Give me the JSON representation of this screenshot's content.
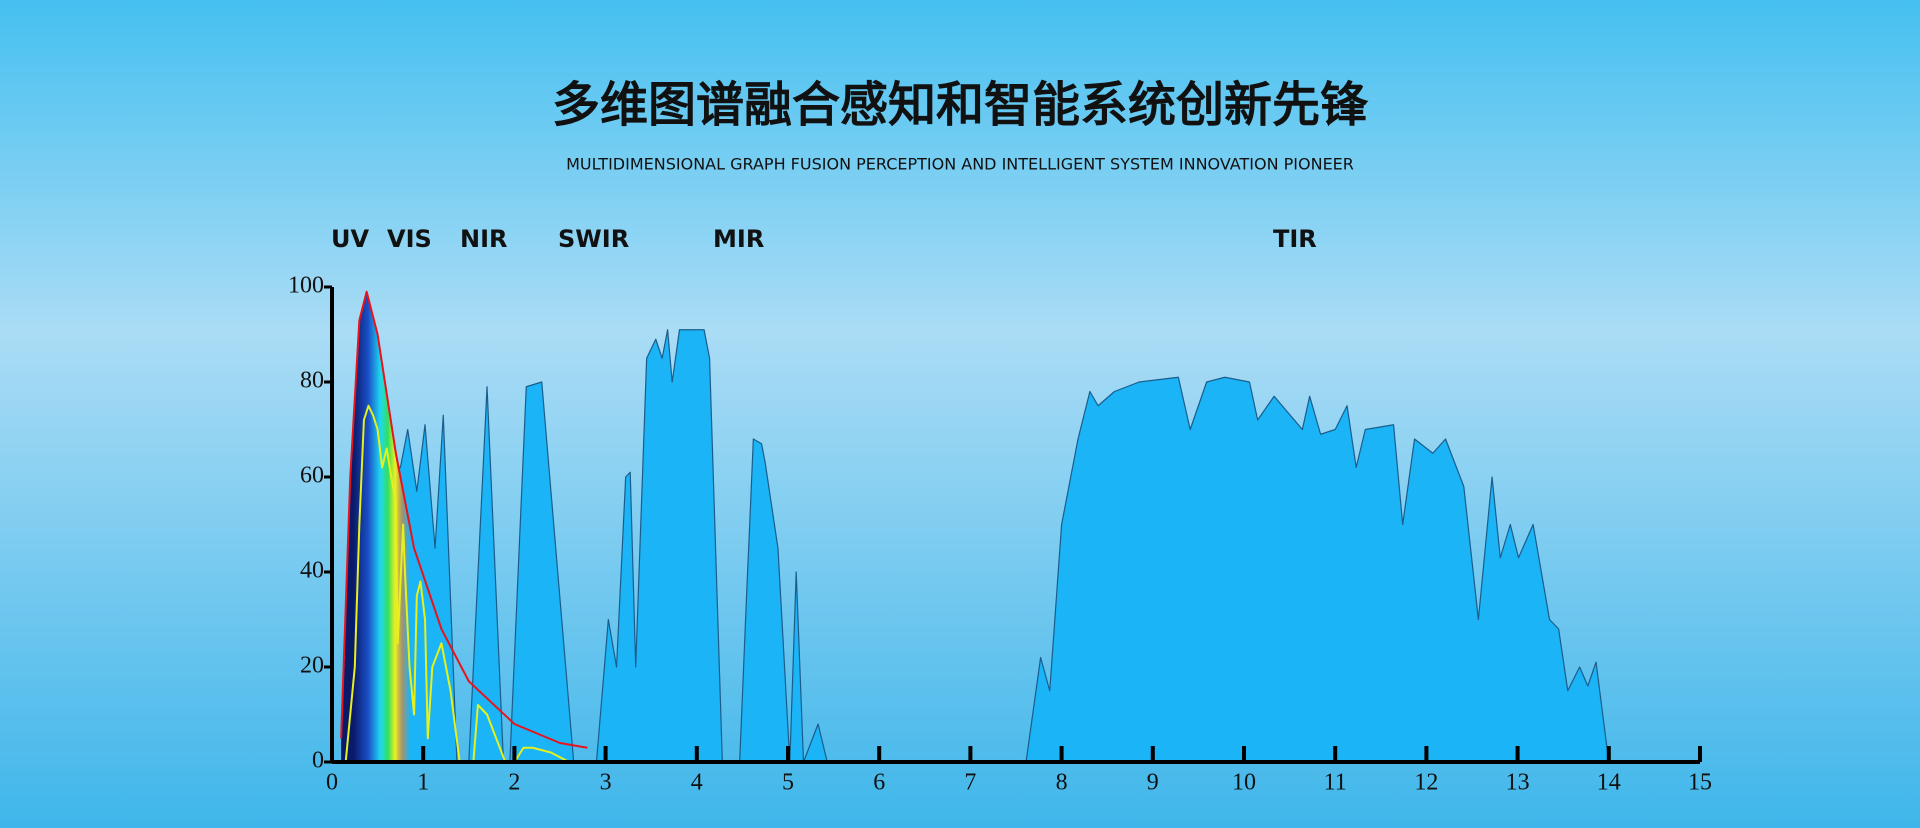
{
  "chart_data": {
    "type": "area",
    "title": "多维图谱融合感知和智能系统创新先锋",
    "subtitle": "MULTIDIMENSIONAL GRAPH FUSION PERCEPTION AND INTELLIGENT SYSTEM INNOVATION PIONEER",
    "annotations": [
      "UV",
      "VIS",
      "NIR",
      "SWIR",
      "MIR",
      "TIR"
    ],
    "xlim": [
      0,
      15
    ],
    "xticks": [
      0,
      1,
      2,
      3,
      4,
      5,
      6,
      7,
      8,
      9,
      10,
      11,
      12,
      13,
      14,
      15
    ],
    "ylim": [
      0,
      100
    ],
    "yticks": [
      0,
      20,
      40,
      60,
      80,
      100
    ],
    "series": [
      {
        "type": "area",
        "color": "#1ab4f7",
        "x": [
          0.2,
          0.36,
          0.52,
          0.75,
          0.83,
          0.93,
          1.02,
          1.13,
          1.22,
          1.37,
          1.5,
          1.7,
          1.88,
          1.95,
          2.13,
          2.3,
          2.65,
          2.9,
          3.03,
          3.12,
          3.22,
          3.27,
          3.33,
          3.45,
          3.55,
          3.62,
          3.68,
          3.73,
          3.81,
          4.08,
          4.14,
          4.28,
          4.47,
          4.55,
          4.58,
          4.62,
          4.71,
          4.75,
          4.89,
          5.02,
          5.09,
          5.17,
          5.33,
          5.43,
          7.61,
          7.77,
          7.87,
          8.0,
          8.08,
          8.18,
          8.31,
          8.4,
          8.58,
          8.85,
          9.28,
          9.41,
          9.59,
          9.79,
          10.06,
          10.15,
          10.33,
          10.64,
          10.72,
          10.84,
          11.0,
          11.13,
          11.23,
          11.33,
          11.64,
          11.74,
          11.87,
          12.07,
          12.21,
          12.41,
          12.57,
          12.72,
          12.81,
          12.92,
          13.01,
          13.17,
          13.35,
          13.45,
          13.55,
          13.68,
          13.77,
          13.86,
          14.0
        ],
        "values": [
          0,
          60,
          64,
          62,
          70,
          57,
          71,
          45,
          73,
          0,
          0,
          79,
          0,
          0,
          79,
          80,
          0,
          0,
          30,
          20,
          60,
          61,
          20,
          85,
          89,
          85,
          91,
          80,
          91,
          91,
          85,
          0,
          0,
          37,
          50,
          68,
          67,
          63,
          45,
          0,
          40,
          0,
          8,
          0,
          0,
          22,
          15,
          50,
          58,
          68,
          78,
          75,
          78,
          80,
          81,
          70,
          80,
          81,
          80,
          72,
          77,
          70,
          77,
          69,
          70,
          75,
          62,
          70,
          71,
          50,
          68,
          65,
          68,
          58,
          30,
          60,
          43,
          50,
          43,
          50,
          30,
          28,
          15,
          20,
          16,
          21,
          0
        ]
      },
      {
        "type": "line",
        "color": "#e8141c",
        "x": [
          0.1,
          0.2,
          0.3,
          0.38,
          0.5,
          0.7,
          0.9,
          1.2,
          1.5,
          2.0,
          2.5,
          2.8
        ],
        "values": [
          5,
          60,
          93,
          99,
          90,
          65,
          45,
          28,
          17,
          8,
          4,
          3
        ]
      },
      {
        "type": "line",
        "color": "#e6f01c",
        "x": [
          0.15,
          0.25,
          0.3,
          0.35,
          0.4,
          0.45,
          0.5,
          0.55,
          0.6,
          0.65,
          0.7,
          0.72,
          0.78,
          0.8,
          0.85,
          0.9,
          0.93,
          0.97,
          1.02,
          1.05,
          1.1,
          1.2,
          1.3,
          1.4,
          1.55,
          1.6,
          1.7,
          1.8,
          1.9,
          2.0,
          2.1,
          2.2,
          2.4,
          2.6
        ],
        "values": [
          0,
          20,
          50,
          72,
          75,
          73,
          70,
          62,
          66,
          60,
          55,
          25,
          50,
          40,
          20,
          10,
          35,
          38,
          30,
          5,
          20,
          25,
          15,
          0,
          0,
          12,
          10,
          5,
          0,
          0,
          3,
          3,
          2,
          0
        ]
      }
    ]
  }
}
